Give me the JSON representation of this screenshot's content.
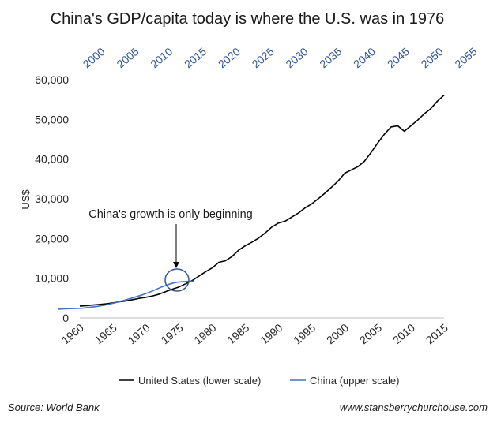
{
  "chart_data": {
    "type": "line",
    "title": "China's GDP/capita today is where the U.S. was in 1976",
    "ylabel": "US$",
    "ylim": [
      0,
      60000
    ],
    "yticks": [
      0,
      10000,
      20000,
      30000,
      40000,
      50000,
      60000
    ],
    "ytick_labels": [
      "0",
      "10,000",
      "20,000",
      "30,000",
      "40,000",
      "50,000",
      "60,000"
    ],
    "bottom_axis": {
      "range": [
        1960,
        2015
      ],
      "ticks": [
        "1960",
        "1965",
        "1970",
        "1975",
        "1980",
        "1985",
        "1990",
        "1995",
        "2000",
        "2005",
        "2010",
        "2015"
      ]
    },
    "top_axis": {
      "range": [
        1995,
        2055
      ],
      "ticks": [
        "2000",
        "2005",
        "2010",
        "2015",
        "2020",
        "2025",
        "2030",
        "2035",
        "2040",
        "2045",
        "2050",
        "2055"
      ]
    },
    "series": [
      {
        "name": "United States (lower scale)",
        "axis": "bottom",
        "color": "#000000",
        "x": [
          1960,
          1961,
          1962,
          1963,
          1964,
          1965,
          1966,
          1967,
          1968,
          1969,
          1970,
          1971,
          1972,
          1973,
          1974,
          1975,
          1976,
          1977,
          1978,
          1979,
          1980,
          1981,
          1982,
          1983,
          1984,
          1985,
          1986,
          1987,
          1988,
          1989,
          1990,
          1991,
          1992,
          1993,
          1994,
          1995,
          1996,
          1997,
          1998,
          1999,
          2000,
          2001,
          2002,
          2003,
          2004,
          2005,
          2006,
          2007,
          2008,
          2009,
          2010,
          2011,
          2012,
          2013,
          2014,
          2015
        ],
        "values": [
          3000,
          3100,
          3250,
          3400,
          3550,
          3800,
          4100,
          4300,
          4600,
          4950,
          5200,
          5550,
          6000,
          6650,
          7250,
          7800,
          8600,
          9450,
          10550,
          11650,
          12600,
          14000,
          14400,
          15500,
          17100,
          18200,
          19100,
          20100,
          21400,
          22900,
          23900,
          24350,
          25400,
          26400,
          27700,
          28700,
          30000,
          31400,
          32900,
          34500,
          36450,
          37300,
          38100,
          39500,
          41700,
          44100,
          46300,
          48100,
          48400,
          47000,
          48400,
          49800,
          51400,
          52700,
          54600,
          56100
        ]
      },
      {
        "name": "China (upper scale)",
        "axis": "top",
        "color": "#4472c4",
        "x": [
          1995,
          1996,
          1997,
          1998,
          1999,
          2000,
          2001,
          2002,
          2003,
          2004,
          2005,
          2006,
          2007,
          2008,
          2009,
          2010,
          2011,
          2012,
          2013,
          2014,
          2015,
          2016
        ],
        "values": [
          2200,
          2300,
          2350,
          2400,
          2500,
          2700,
          2900,
          3150,
          3500,
          3900,
          4350,
          4800,
          5300,
          5800,
          6400,
          7100,
          7800,
          8400,
          8900,
          9100,
          9200,
          9250
        ]
      }
    ],
    "annotation": "China's growth is only beginning",
    "legend": [
      "United States (lower scale)",
      "China (upper scale)"
    ],
    "legend_position": "bottom"
  },
  "footer": {
    "source": "Source: World Bank",
    "website": "www.stansberrychurchouse.com"
  }
}
